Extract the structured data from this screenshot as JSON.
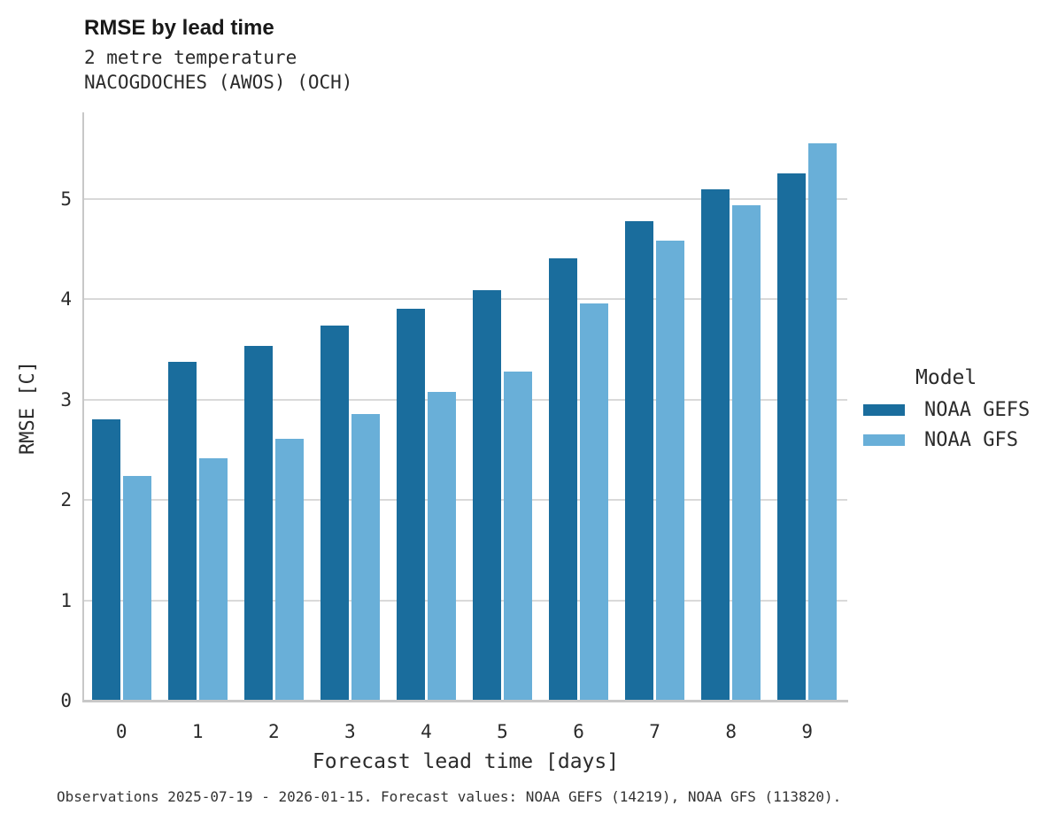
{
  "chart_data": {
    "type": "bar",
    "title": "RMSE by lead time",
    "subtitle_lines": [
      "2 metre temperature",
      "NACOGDOCHES (AWOS) (OCH)"
    ],
    "categories": [
      "0",
      "1",
      "2",
      "3",
      "4",
      "5",
      "6",
      "7",
      "8",
      "9"
    ],
    "series": [
      {
        "name": "NOAA GEFS",
        "color": "#1A6D9D",
        "values": [
          2.8,
          3.38,
          3.54,
          3.74,
          3.91,
          4.09,
          4.41,
          4.78,
          5.1,
          5.26
        ]
      },
      {
        "name": "NOAA GFS",
        "color": "#69AFD8",
        "values": [
          2.24,
          2.42,
          2.61,
          2.86,
          3.08,
          3.28,
          3.96,
          4.59,
          4.94,
          5.56
        ]
      }
    ],
    "xlabel": "Forecast lead time [days]",
    "ylabel": "RMSE [C]",
    "ylim": [
      0,
      5.86
    ],
    "yticks": [
      0,
      1,
      2,
      3,
      4,
      5
    ],
    "grid": "horizontal",
    "legend": {
      "title": "Model",
      "position": "right-center"
    },
    "footnote": "Observations 2025-07-19 - 2026-01-15. Forecast values: NOAA GEFS (14219), NOAA GFS (113820).",
    "colors": {
      "background": "#ffffff",
      "gridline": "#d9d9d9",
      "spine": "#c8c8c8",
      "text": "#2b2b2b",
      "title_text": "#191919"
    }
  }
}
